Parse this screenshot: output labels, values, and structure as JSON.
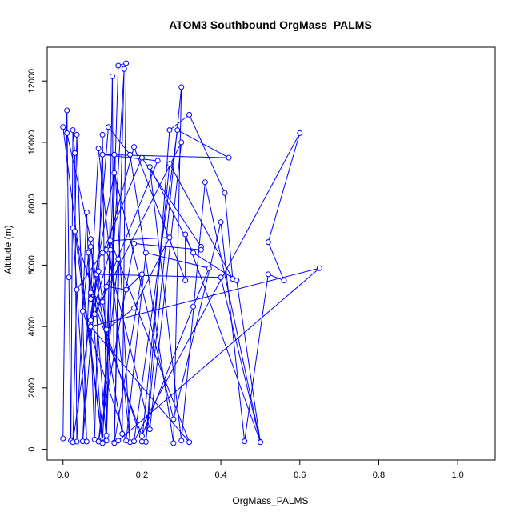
{
  "chart_data": {
    "type": "scatter",
    "title": "ATOM3 Southbound OrgMass_PALMS",
    "xlabel": "OrgMass_PALMS",
    "ylabel": "Altitude (m)",
    "xlim": [
      -0.04,
      1.095
    ],
    "ylim": [
      -350,
      13100
    ],
    "x_ticks": [
      0,
      0.2,
      0.4,
      0.6,
      0.8,
      1.0
    ],
    "x_tick_labels": [
      "0.0",
      "0.2",
      "0.4",
      "0.6",
      "0.8",
      "1.0"
    ],
    "y_ticks": [
      0,
      2000,
      4000,
      6000,
      8000,
      10000,
      12000
    ],
    "y_tick_labels": [
      "0",
      "2000",
      "4000",
      "6000",
      "8000",
      "10000",
      "12000"
    ],
    "grid": false,
    "legend": "none",
    "series": [
      {
        "color": "#0000ff",
        "marker": "open-circle",
        "line": true,
        "points": [
          [
            0.0,
            350
          ],
          [
            0.01,
            11040
          ],
          [
            0.015,
            5600
          ],
          [
            0.02,
            280
          ],
          [
            0.025,
            10400
          ],
          [
            0.03,
            9650
          ],
          [
            0.035,
            250
          ],
          [
            0.06,
            7720
          ],
          [
            0.08,
            320
          ],
          [
            0.1,
            10250
          ],
          [
            0.11,
            450
          ],
          [
            0.125,
            12150
          ],
          [
            0.13,
            220
          ],
          [
            0.155,
            12390
          ],
          [
            0.1,
            300
          ],
          [
            0.0,
            10500
          ],
          [
            0.01,
            10300
          ],
          [
            0.07,
            6850
          ],
          [
            0.11,
            280
          ],
          [
            0.14,
            12500
          ],
          [
            0.16,
            12580
          ],
          [
            0.15,
            500
          ],
          [
            0.07,
            6600
          ],
          [
            0.05,
            260
          ],
          [
            0.115,
            10500
          ],
          [
            0.17,
            9600
          ],
          [
            0.28,
            200
          ],
          [
            0.3,
            11800
          ],
          [
            0.21,
            240
          ],
          [
            0.27,
            10400
          ],
          [
            0.32,
            10900
          ],
          [
            0.41,
            8350
          ],
          [
            0.43,
            5550
          ],
          [
            0.27,
            9300
          ],
          [
            0.2,
            250
          ],
          [
            0.025,
            7200
          ],
          [
            0.06,
            250
          ],
          [
            0.035,
            10250
          ],
          [
            0.03,
            7100
          ],
          [
            0.1,
            230
          ],
          [
            0.13,
            9600
          ],
          [
            0.17,
            230
          ],
          [
            0.09,
            9800
          ],
          [
            0.07,
            4900
          ],
          [
            0.13,
            9000
          ],
          [
            0.28,
            980
          ],
          [
            0.4,
            7400
          ],
          [
            0.46,
            260
          ],
          [
            0.52,
            5700
          ],
          [
            0.56,
            5500
          ],
          [
            0.52,
            6750
          ],
          [
            0.6,
            10300
          ],
          [
            0.18,
            260
          ],
          [
            0.29,
            10400
          ],
          [
            0.42,
            9500
          ],
          [
            0.1,
            9600
          ],
          [
            0.24,
            9400
          ],
          [
            0.08,
            4400
          ],
          [
            0.3,
            10000
          ],
          [
            0.22,
            650
          ],
          [
            0.11,
            6500
          ],
          [
            0.18,
            9850
          ],
          [
            0.31,
            5500
          ],
          [
            0.31,
            7000
          ],
          [
            0.5,
            240
          ],
          [
            0.36,
            8700
          ],
          [
            0.3,
            280
          ],
          [
            0.22,
            9200
          ],
          [
            0.33,
            6400
          ],
          [
            0.44,
            5500
          ],
          [
            0.5,
            230
          ],
          [
            0.4,
            5600
          ],
          [
            0.085,
            5700
          ],
          [
            0.025,
            230
          ],
          [
            0.035,
            5200
          ],
          [
            0.1,
            6400
          ],
          [
            0.2,
            9500
          ],
          [
            0.35,
            6600
          ],
          [
            0.35,
            6500
          ],
          [
            0.18,
            6700
          ],
          [
            0.09,
            250
          ],
          [
            0.14,
            6200
          ],
          [
            0.13,
            200
          ],
          [
            0.2,
            5700
          ],
          [
            0.16,
            5200
          ],
          [
            0.11,
            5300
          ],
          [
            0.1,
            4800
          ],
          [
            0.07,
            5100
          ],
          [
            0.2,
            430
          ],
          [
            0.33,
            4650
          ],
          [
            0.37,
            5900
          ],
          [
            0.21,
            6400
          ],
          [
            0.16,
            280
          ],
          [
            0.05,
            4500
          ],
          [
            0.065,
            6400
          ],
          [
            0.1,
            200
          ],
          [
            0.14,
            280
          ],
          [
            0.65,
            5900
          ],
          [
            0.07,
            4000
          ],
          [
            0.32,
            230
          ],
          [
            0.12,
            6800
          ],
          [
            0.27,
            6900
          ],
          [
            0.18,
            4600
          ],
          [
            0.11,
            3900
          ],
          [
            0.09,
            5800
          ],
          [
            0.07,
            4200
          ],
          [
            0.12,
            6500
          ]
        ]
      }
    ]
  }
}
